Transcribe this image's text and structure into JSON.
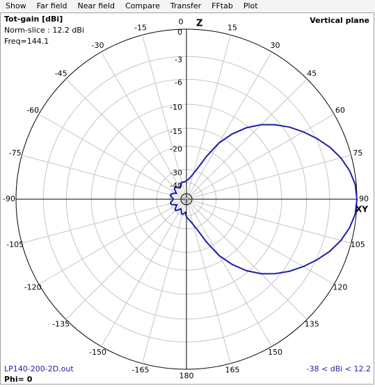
{
  "menu": {
    "items": [
      {
        "label": "Show",
        "enabled": true
      },
      {
        "label": "Far field",
        "enabled": true
      },
      {
        "label": "Near field",
        "enabled": false
      },
      {
        "label": "Compare",
        "enabled": true
      },
      {
        "label": "Transfer",
        "enabled": true
      },
      {
        "label": "FFtab",
        "enabled": false
      },
      {
        "label": "Plot",
        "enabled": true
      }
    ]
  },
  "chart_data": {
    "type": "polar",
    "title": "Vertical plane",
    "quantity": "Tot-gain [dBi]",
    "normalization": "Norm-slice : 12.2 dBi",
    "frequency": "Freq=144.1",
    "file": "LP140-200-2D.out",
    "slice": "Phi= 0",
    "range_note": "-38 < dBi < 12.2",
    "zenith_label": "Z",
    "horizon_label": "XY",
    "r_scale": "arrl-log",
    "rticks": [
      0,
      -3,
      -6,
      -10,
      -15,
      -20,
      -30,
      -40
    ],
    "thetaticks": [
      -165,
      -150,
      -135,
      -120,
      -105,
      -90,
      -75,
      -60,
      -45,
      -30,
      -15,
      0,
      15,
      30,
      45,
      60,
      75,
      90,
      105,
      120,
      135,
      150,
      165,
      180
    ],
    "grid": true,
    "color": "#1c1ca8",
    "theta": [
      -175,
      -170,
      -165,
      -160,
      -155,
      -150,
      -145,
      -140,
      -135,
      -130,
      -125,
      -120,
      -115,
      -110,
      -105,
      -100,
      -95,
      -90,
      -85,
      -80,
      -75,
      -70,
      -65,
      -60,
      -55,
      -50,
      -45,
      -40,
      -35,
      -30,
      -25,
      -20,
      -15,
      -10,
      -5,
      0,
      5,
      10,
      15,
      20,
      25,
      30,
      35,
      40,
      45,
      50,
      55,
      60,
      65,
      70,
      75,
      80,
      85,
      90,
      95,
      100,
      105,
      110,
      115,
      120,
      125,
      130,
      135,
      140,
      145,
      150,
      155,
      160,
      165,
      170,
      175,
      180
    ],
    "values": [
      -44,
      -42,
      -41,
      -42,
      -45,
      -47,
      -45,
      -42,
      -41,
      -42,
      -45,
      -47,
      -44,
      -41,
      -40,
      -41,
      -43,
      -44,
      -43,
      -41,
      -40,
      -41,
      -43,
      -46,
      -44,
      -41,
      -40,
      -41,
      -43,
      -44,
      -42,
      -40,
      -39,
      -39,
      -39,
      -38,
      -37,
      -35,
      -32,
      -28,
      -22,
      -16.5,
      -13,
      -10.3,
      -8.2,
      -6.6,
      -5.2,
      -4,
      -2.9,
      -1.9,
      -1.1,
      -0.5,
      -0.1,
      0,
      -0.1,
      -0.5,
      -1.1,
      -1.9,
      -2.9,
      -4,
      -5.2,
      -6.6,
      -8.2,
      -10.3,
      -13,
      -16.5,
      -22,
      -28,
      -32,
      -35,
      -37,
      -39
    ]
  }
}
